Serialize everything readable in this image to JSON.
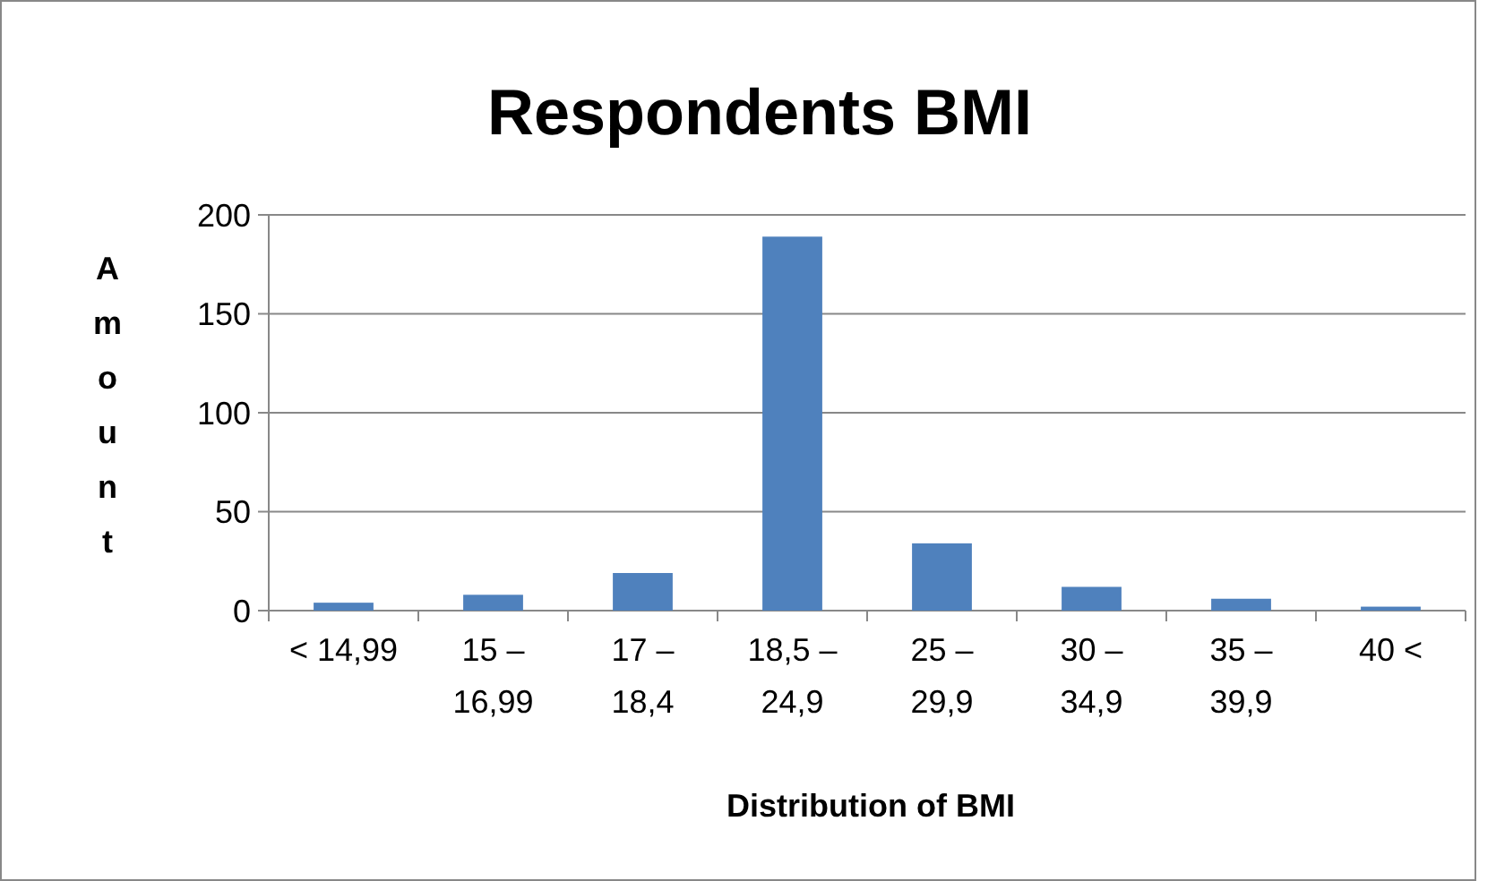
{
  "chart_data": {
    "type": "bar",
    "title": "Respondents BMI",
    "xlabel": "Distribution of BMI",
    "ylabel": "Amount",
    "categories": [
      "< 14,99",
      "15 – 16,99",
      "17 – 18,4",
      "18,5 – 24,9",
      "25 – 29,9",
      "30 – 34,9",
      "35 – 39,9",
      "40 <"
    ],
    "values": [
      4,
      8,
      19,
      189,
      34,
      12,
      6,
      2
    ],
    "color": "#4f81bd",
    "ylim": [
      0,
      200
    ],
    "yticks": [
      0,
      50,
      100,
      150,
      200
    ],
    "grid": "y"
  }
}
